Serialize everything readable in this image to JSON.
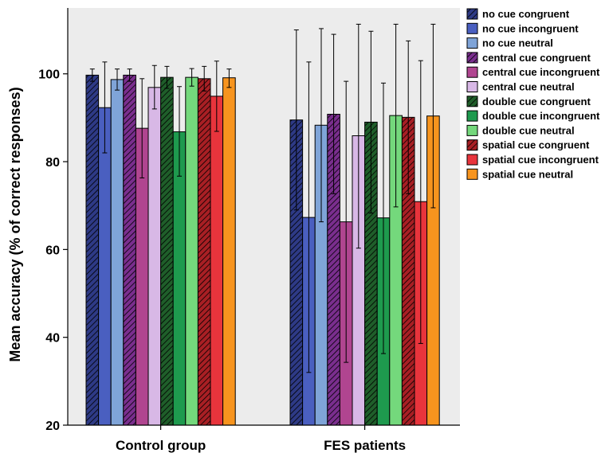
{
  "chart_data": {
    "type": "bar",
    "title": "",
    "xlabel": "",
    "ylabel": "Mean accuracy (% of correct responses)",
    "ylim": [
      20,
      115
    ],
    "yticks": [
      20,
      40,
      60,
      80,
      100
    ],
    "grid": false,
    "legend_position": "right",
    "plot_background": "#ececec",
    "categories": [
      "Control group",
      "FES patients"
    ],
    "series": [
      {
        "name": "no cue congruent",
        "color": "#2e3a86",
        "hatched": true,
        "values": [
          99.7,
          89.5
        ],
        "error_bars": [
          [
            98.3,
            101.1
          ],
          [
            69.0,
            110.0
          ]
        ]
      },
      {
        "name": "no cue incongruent",
        "color": "#4a5fc0",
        "hatched": false,
        "values": [
          92.3,
          67.3
        ],
        "error_bars": [
          [
            82.0,
            102.7
          ],
          [
            32.0,
            102.7
          ]
        ]
      },
      {
        "name": "no cue neutral",
        "color": "#7fa4d8",
        "hatched": false,
        "values": [
          98.7,
          88.3
        ],
        "error_bars": [
          [
            96.3,
            101.1
          ],
          [
            66.3,
            110.3
          ]
        ]
      },
      {
        "name": "central cue congruent",
        "color": "#7a2e8e",
        "hatched": true,
        "values": [
          99.7,
          90.8
        ],
        "error_bars": [
          [
            98.3,
            101.1
          ],
          [
            72.7,
            109.0
          ]
        ]
      },
      {
        "name": "central cue incongruent",
        "color": "#b04590",
        "hatched": false,
        "values": [
          87.6,
          66.3
        ],
        "error_bars": [
          [
            76.3,
            98.9
          ],
          [
            34.3,
            98.3
          ]
        ]
      },
      {
        "name": "central cue neutral",
        "color": "#d8b8e6",
        "hatched": false,
        "values": [
          96.9,
          85.9
        ],
        "error_bars": [
          [
            92.0,
            101.9
          ],
          [
            60.3,
            111.3
          ]
        ]
      },
      {
        "name": "double cue congruent",
        "color": "#1f5e2a",
        "hatched": true,
        "values": [
          99.2,
          89.0
        ],
        "error_bars": [
          [
            96.7,
            101.7
          ],
          [
            68.3,
            109.7
          ]
        ]
      },
      {
        "name": "double cue incongruent",
        "color": "#1e9a4e",
        "hatched": false,
        "values": [
          86.8,
          67.2
        ],
        "error_bars": [
          [
            76.7,
            97.1
          ],
          [
            36.3,
            97.9
          ]
        ]
      },
      {
        "name": "double cue neutral",
        "color": "#74d87c",
        "hatched": false,
        "values": [
          99.2,
          90.5
        ],
        "error_bars": [
          [
            97.2,
            101.2
          ],
          [
            69.7,
            111.3
          ]
        ]
      },
      {
        "name": "spatial cue congruent",
        "color": "#a81f24",
        "hatched": true,
        "values": [
          98.9,
          90.1
        ],
        "error_bars": [
          [
            96.1,
            101.7
          ],
          [
            72.7,
            107.5
          ]
        ]
      },
      {
        "name": "spatial cue incongruent",
        "color": "#e8343c",
        "hatched": false,
        "values": [
          94.9,
          70.9
        ],
        "error_bars": [
          [
            86.9,
            102.9
          ],
          [
            38.6,
            103.0
          ]
        ]
      },
      {
        "name": "spatial cue neutral",
        "color": "#f7941e",
        "hatched": false,
        "values": [
          99.1,
          90.4
        ],
        "error_bars": [
          [
            96.9,
            101.1
          ],
          [
            69.5,
            111.3
          ]
        ]
      }
    ]
  }
}
